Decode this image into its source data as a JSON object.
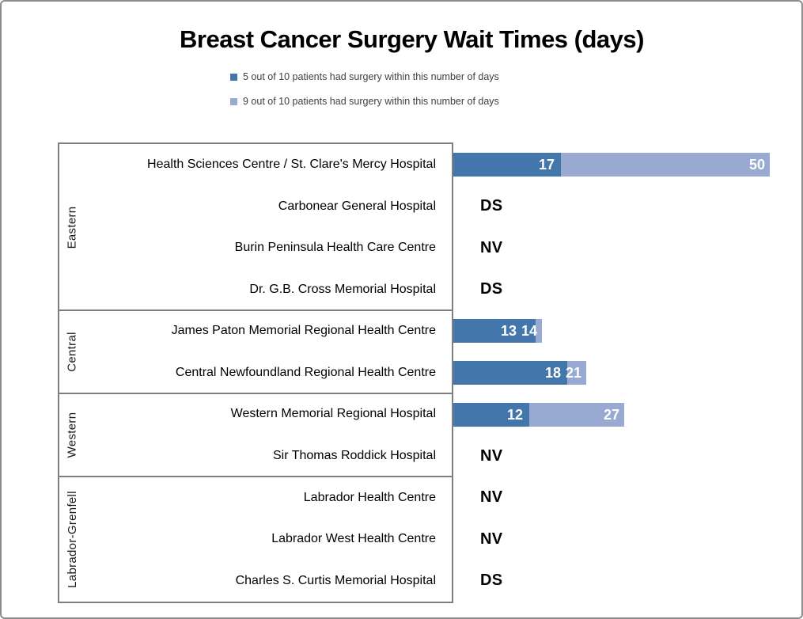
{
  "chart_data": {
    "type": "bar",
    "orientation": "horizontal",
    "title": "Breast Cancer Surgery Wait Times (days)",
    "xlabel": "",
    "ylabel": "",
    "xlim": [
      0,
      55
    ],
    "grid": false,
    "legend_position": "top-center",
    "legend": [
      {
        "series": "p50",
        "label": "5 out of 10 patients had surgery within this number of days",
        "color": "#4376AB"
      },
      {
        "series": "p90",
        "label": "9 out of 10 patients had surgery within this number of days",
        "color": "#98A9D2"
      }
    ],
    "groups": [
      {
        "region": "Eastern",
        "hospitals": [
          {
            "name": "Health Sciences Centre / St. Clare's Mercy Hospital",
            "p50": 17,
            "p90": 50
          },
          {
            "name": "Carbonear General Hospital",
            "status": "DS"
          },
          {
            "name": "Burin Peninsula Health Care Centre",
            "status": "NV"
          },
          {
            "name": "Dr. G.B. Cross Memorial Hospital",
            "status": "DS"
          }
        ]
      },
      {
        "region": "Central",
        "hospitals": [
          {
            "name": "James Paton Memorial Regional Health Centre",
            "p50": 13,
            "p90": 14
          },
          {
            "name": "Central Newfoundland Regional Health Centre",
            "p50": 18,
            "p90": 21
          }
        ]
      },
      {
        "region": "Western",
        "hospitals": [
          {
            "name": "Western Memorial Regional Hospital",
            "p50": 12,
            "p90": 27
          },
          {
            "name": "Sir Thomas Roddick Hospital",
            "status": "NV"
          }
        ]
      },
      {
        "region": "Labrador-Grenfell",
        "hospitals": [
          {
            "name": "Labrador Health Centre",
            "status": "NV"
          },
          {
            "name": "Labrador West Health Centre",
            "status": "NV"
          },
          {
            "name": "Charles S. Curtis Memorial Hospital",
            "status": "DS"
          }
        ]
      }
    ],
    "colors": {
      "p50": "#4376AB",
      "p90": "#98A9D2",
      "value_label": "#FFFFFF",
      "grid_line": "#7F7F7F",
      "outer_border": "#8C8C8C"
    }
  }
}
